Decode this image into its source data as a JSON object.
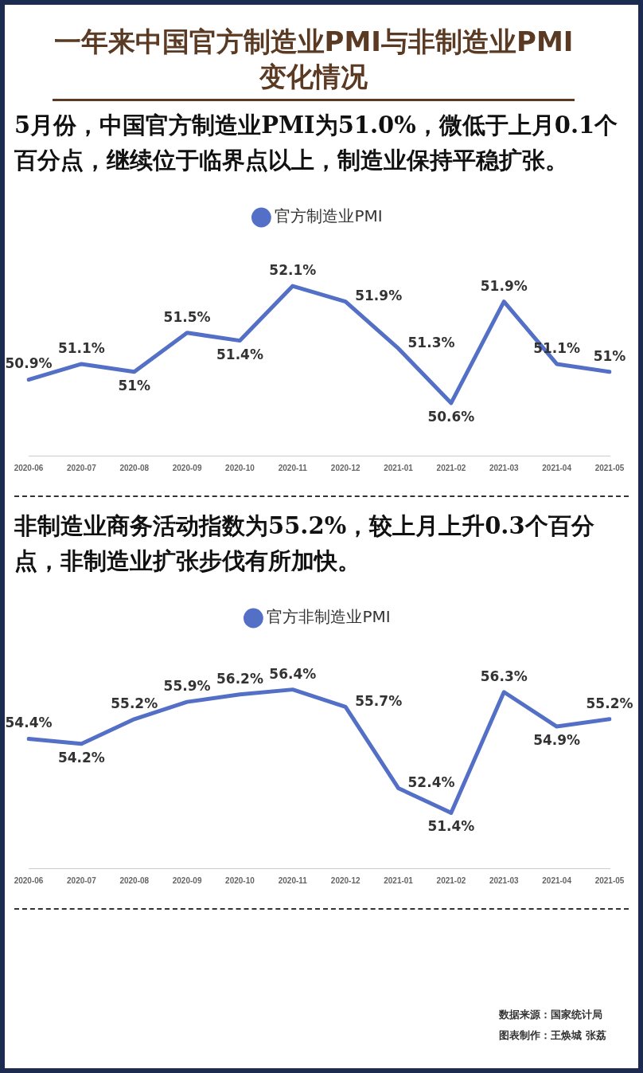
{
  "chart_data": [
    {
      "type": "line",
      "title": "一年来中国官方制造业PMI与非制造业PMI变化情况",
      "subtitle": "5月份，中国官方制造业PMI为51.0%，微低于上月0.1个百分点，继续位于临界点以上，制造业保持平稳扩张。",
      "categories": [
        "2020-06",
        "2020-07",
        "2020-08",
        "2020-09",
        "2020-10",
        "2020-11",
        "2020-12",
        "2021-01",
        "2021-02",
        "2021-03",
        "2021-04",
        "2021-05"
      ],
      "series": [
        {
          "name": "官方制造业PMI",
          "color": "#5470c6",
          "values": [
            50.9,
            51.1,
            51.0,
            51.5,
            51.4,
            52.1,
            51.9,
            51.3,
            50.6,
            51.9,
            51.1,
            51.0
          ],
          "value_labels": [
            "50.9%",
            "51.1%",
            "51%",
            "51.5%",
            "51.4%",
            "52.1%",
            "51.9%",
            "51.3%",
            "50.6%",
            "51.9%",
            "51.1%",
            "51%"
          ]
        }
      ],
      "legend": "top",
      "marker": "none",
      "grid": false
    },
    {
      "type": "line",
      "subtitle": "非制造业商务活动指数为55.2%，较上月上升0.3个百分点，非制造业扩张步伐有所加快。",
      "categories": [
        "2020-06",
        "2020-07",
        "2020-08",
        "2020-09",
        "2020-10",
        "2020-11",
        "2020-12",
        "2021-01",
        "2021-02",
        "2021-03",
        "2021-04",
        "2021-05"
      ],
      "series": [
        {
          "name": "官方非制造业PMI",
          "color": "#5470c6",
          "values": [
            54.4,
            54.2,
            55.2,
            55.9,
            56.2,
            56.4,
            55.7,
            52.4,
            51.4,
            56.3,
            54.9,
            55.2
          ],
          "value_labels": [
            "54.4%",
            "54.2%",
            "55.2%",
            "55.9%",
            "56.2%",
            "56.4%",
            "55.7%",
            "52.4%",
            "51.4%",
            "56.3%",
            "54.9%",
            "55.2%"
          ]
        }
      ],
      "legend": "top",
      "marker": "none",
      "grid": false,
      "annotations": [
        "数据来源：国家统计局",
        "图表制作：王焕城 张荔"
      ]
    }
  ]
}
